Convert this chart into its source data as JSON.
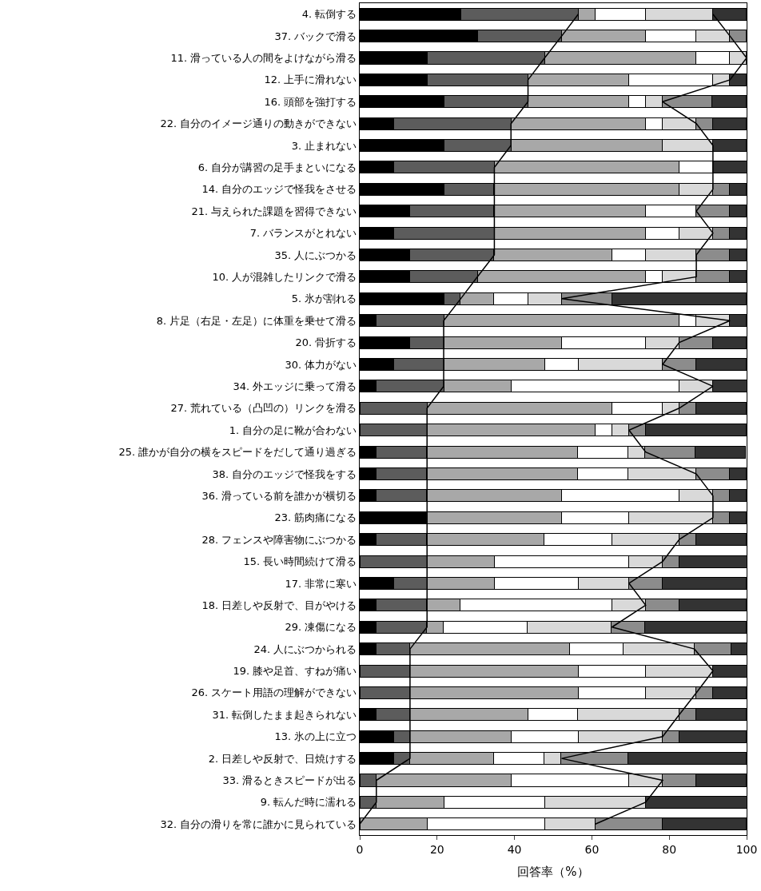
{
  "chart_data": {
    "type": "bar",
    "orientation": "horizontal",
    "stacked": true,
    "xlabel": "回答率（%）",
    "categories": [
      "4. 転倒する",
      "37. バックで滑る",
      "11. 滑っている人の間をよけながら滑る",
      "12. 上手に滑れない",
      "16. 頭部を強打する",
      "22. 自分のイメージ通りの動きができない",
      "3. 止まれない",
      "6. 自分が講習の足手まといになる",
      "14. 自分のエッジで怪我をさせる",
      "21. 与えられた課題を習得できない",
      "7. バランスがとれない",
      "35. 人にぶつかる",
      "10. 人が混雑したリンクで滑る",
      "5. 氷が割れる",
      "8. 片足（右足・左足）に体重を乗せて滑る",
      "20. 骨折する",
      "30. 体力がない",
      "34. 外エッジに乗って滑る",
      "27. 荒れている（凸凹の）リンクを滑る",
      "1. 自分の足に靴が合わない",
      "25. 誰かが自分の横をスピードをだして通り過ぎる",
      "38. 自分のエッジで怪我をする",
      "36. 滑っている前を誰かが横切る",
      "23. 筋肉痛になる",
      "28. フェンスや障害物にぶつかる",
      "15. 長い時間続けて滑る",
      "17. 非常に寒い",
      "18. 日差しや反射で、目がやける",
      "29. 凍傷になる",
      "24. 人にぶつかられる",
      "19. 膝や足首、すねが痛い",
      "26. スケート用語の理解ができない",
      "31. 転倒したまま起きられない",
      "13. 氷の上に立つ",
      "2. 日差しや反射で、日焼けする",
      "33. 滑るときスピードが出る",
      "9. 転んだ時に濡れる",
      "32. 自分の滑りを常に誰かに見られている"
    ],
    "xlim": [
      0,
      100
    ],
    "xticks": [
      0,
      20,
      40,
      60,
      80,
      100
    ],
    "series": [
      {
        "color": "#000000",
        "values": [
          26.1,
          30.4,
          17.4,
          17.4,
          21.7,
          8.7,
          21.7,
          8.7,
          21.7,
          13.0,
          8.7,
          13.0,
          13.0,
          21.7,
          4.3,
          13.0,
          8.7,
          4.3,
          0,
          0,
          4.3,
          4.3,
          4.3,
          17.4,
          4.3,
          0,
          8.7,
          4.3,
          4.3,
          4.3,
          0,
          0,
          4.3,
          8.7,
          8.7,
          0,
          0,
          0
        ]
      },
      {
        "color": "#5c5c5c",
        "values": [
          30.4,
          21.7,
          30.4,
          26.1,
          21.7,
          30.4,
          17.4,
          26.1,
          13.0,
          21.7,
          26.1,
          21.7,
          17.4,
          4.3,
          17.4,
          8.7,
          13.0,
          17.4,
          17.4,
          17.4,
          13.0,
          13.0,
          13.0,
          0,
          13.0,
          17.4,
          8.7,
          13.0,
          13.0,
          8.7,
          13.0,
          13.0,
          8.7,
          4.3,
          4.3,
          4.3,
          4.3,
          0
        ]
      },
      {
        "color": "#a8a8a8",
        "values": [
          4.3,
          21.7,
          39.1,
          26.1,
          26.1,
          34.8,
          39.1,
          47.8,
          47.8,
          39.1,
          39.1,
          30.4,
          43.5,
          8.7,
          60.9,
          30.4,
          26.1,
          17.4,
          47.8,
          43.5,
          39.1,
          39.1,
          34.8,
          34.8,
          30.4,
          17.4,
          17.4,
          8.7,
          4.3,
          41.3,
          43.5,
          43.5,
          30.4,
          26.1,
          21.7,
          34.8,
          17.4,
          17.4
        ]
      },
      {
        "color": "#ffffff",
        "values": [
          13.0,
          13.0,
          8.7,
          21.7,
          4.3,
          4.3,
          0,
          8.7,
          0,
          13.0,
          8.7,
          8.7,
          4.3,
          8.7,
          4.3,
          21.7,
          8.7,
          43.5,
          13.0,
          4.3,
          13.0,
          13.0,
          30.4,
          17.4,
          17.4,
          34.8,
          21.7,
          39.1,
          21.7,
          13.8,
          17.4,
          17.4,
          13.0,
          17.4,
          13.0,
          30.4,
          26.1,
          30.4
        ]
      },
      {
        "color": "#d9d9d9",
        "values": [
          17.4,
          8.7,
          4.3,
          4.3,
          4.3,
          8.7,
          13.0,
          0,
          8.7,
          0,
          8.7,
          13.0,
          8.7,
          8.7,
          8.7,
          8.7,
          21.7,
          8.7,
          4.3,
          4.3,
          4.3,
          17.4,
          8.7,
          21.7,
          17.4,
          8.7,
          13.0,
          8.7,
          21.7,
          18.4,
          17.4,
          13.0,
          26.1,
          21.7,
          4.3,
          8.7,
          26.1,
          13.0
        ]
      },
      {
        "color": "#8c8c8c",
        "values": [
          0,
          4.3,
          0,
          0,
          13.0,
          4.3,
          0,
          0,
          4.3,
          8.7,
          4.3,
          8.7,
          8.7,
          13.0,
          0,
          8.7,
          8.7,
          0,
          4.3,
          4.3,
          13.0,
          8.7,
          4.3,
          4.3,
          4.3,
          4.3,
          8.7,
          8.7,
          8.7,
          9.5,
          0,
          4.3,
          4.3,
          4.3,
          17.4,
          8.7,
          0,
          17.4
        ]
      },
      {
        "color": "#333333",
        "values": [
          8.7,
          0,
          0,
          4.3,
          8.7,
          8.7,
          8.7,
          8.7,
          4.3,
          4.3,
          4.3,
          4.3,
          4.3,
          34.8,
          4.3,
          8.7,
          13.0,
          8.7,
          13.0,
          26.1,
          13.0,
          4.3,
          4.3,
          4.3,
          13.0,
          17.4,
          21.7,
          17.4,
          26.1,
          4.0,
          8.7,
          8.7,
          13.0,
          17.4,
          30.4,
          13.0,
          26.1,
          21.7
        ]
      },
      {
        "type": "line",
        "color": "#000000",
        "values": [
          56.5,
          52.2,
          47.8,
          43.5,
          43.5,
          39.1,
          39.1,
          34.8,
          34.8,
          34.8,
          34.8,
          34.8,
          30.4,
          26.1,
          21.7,
          21.7,
          21.7,
          21.7,
          17.4,
          17.4,
          17.4,
          17.4,
          17.4,
          17.4,
          17.4,
          17.4,
          17.4,
          17.4,
          17.4,
          13.0,
          13.0,
          13.0,
          13.0,
          13.0,
          13.0,
          4.3,
          4.3,
          0
        ]
      },
      {
        "type": "line",
        "color": "#000000",
        "values": [
          91.3,
          95.7,
          100,
          95.7,
          78.3,
          87.0,
          91.3,
          91.3,
          91.3,
          87.0,
          91.3,
          87.0,
          87.0,
          52.2,
          95.7,
          82.6,
          78.3,
          91.3,
          82.6,
          69.6,
          73.9,
          87.0,
          91.3,
          91.3,
          82.6,
          78.3,
          69.6,
          73.9,
          65.2,
          86.5,
          91.3,
          87.0,
          82.6,
          78.3,
          52.2,
          78.3,
          73.9,
          60.9
        ]
      }
    ]
  }
}
